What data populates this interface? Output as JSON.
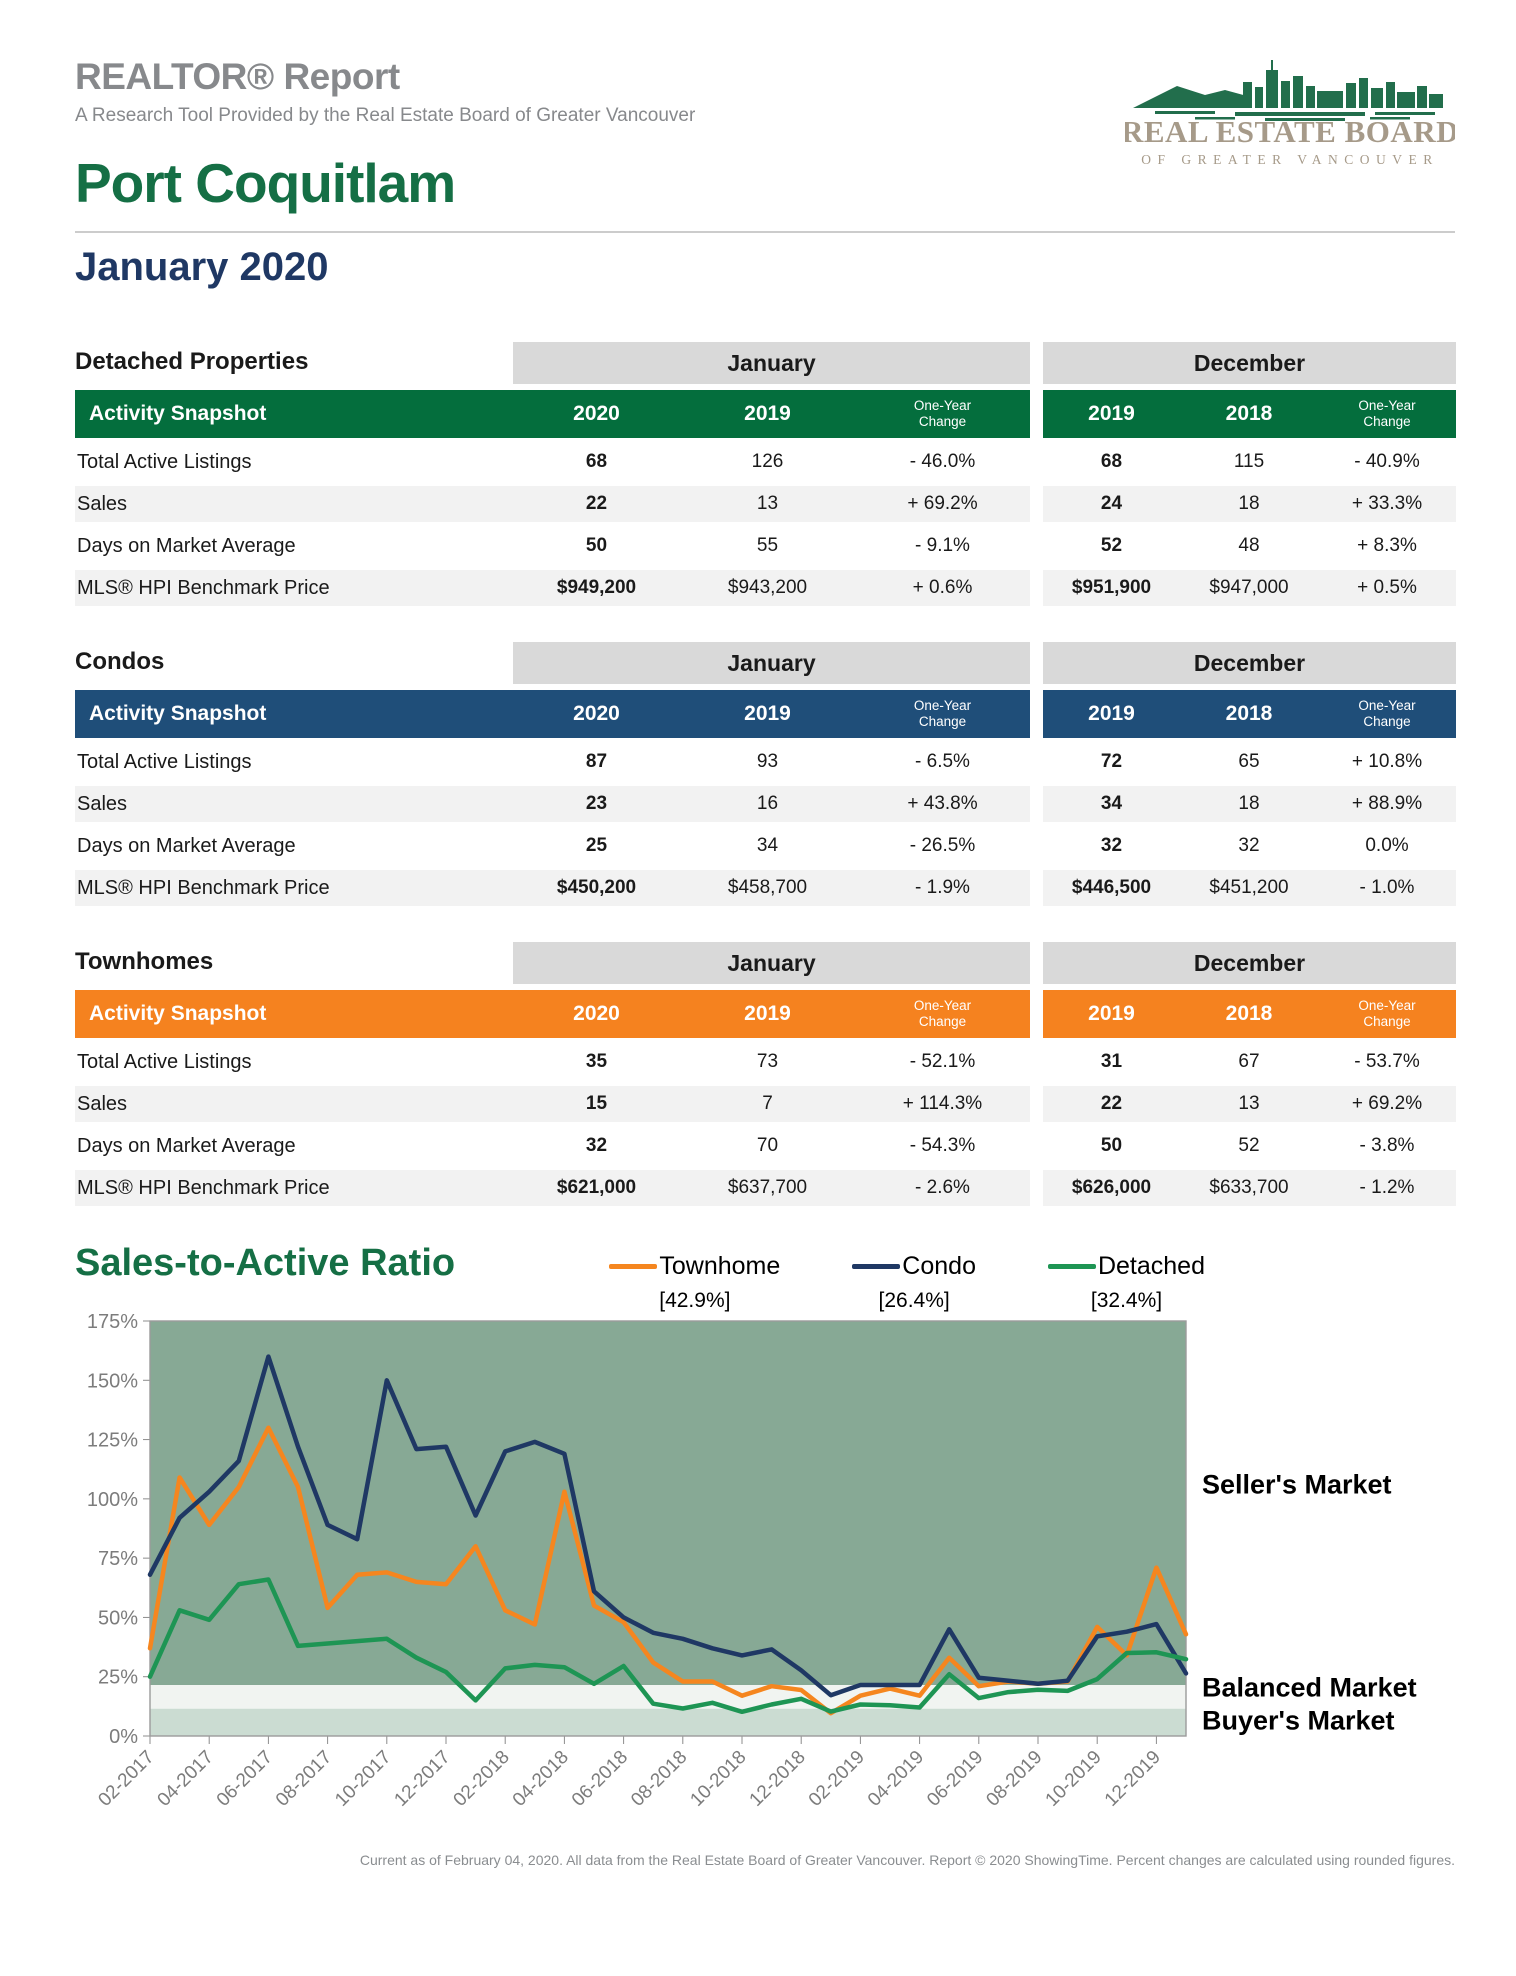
{
  "header": {
    "report_title": "REALTOR® Report",
    "report_subtitle": "A Research Tool Provided by the Real Estate Board of Greater Vancouver",
    "city": "Port Coquitlam",
    "month": "January 2020",
    "logo": {
      "org_line1": "REAL ESTATE BOARD",
      "org_line2": "OF GREATER VANCOUVER",
      "skyline_color": "#226e4c",
      "text_color": "#a69a89"
    }
  },
  "tables": [
    {
      "title": "Detached Properties",
      "accent": "#046e3d",
      "group1": "January",
      "group2": "December",
      "snapshot_label": "Activity Snapshot",
      "col_headers": [
        "2020",
        "2019",
        "One-Year\nChange",
        "2019",
        "2018",
        "One-Year\nChange"
      ],
      "rows": [
        {
          "label": "Total Active Listings",
          "values": [
            "68",
            "126",
            "- 46.0%",
            "68",
            "115",
            "- 40.9%"
          ]
        },
        {
          "label": "Sales",
          "values": [
            "22",
            "13",
            "+ 69.2%",
            "24",
            "18",
            "+ 33.3%"
          ]
        },
        {
          "label": "Days on Market Average",
          "values": [
            "50",
            "55",
            "- 9.1%",
            "52",
            "48",
            "+ 8.3%"
          ]
        },
        {
          "label": "MLS® HPI Benchmark Price",
          "values": [
            "$949,200",
            "$943,200",
            "+ 0.6%",
            "$951,900",
            "$947,000",
            "+ 0.5%"
          ]
        }
      ]
    },
    {
      "title": "Condos",
      "accent": "#1f4e79",
      "group1": "January",
      "group2": "December",
      "snapshot_label": "Activity Snapshot",
      "col_headers": [
        "2020",
        "2019",
        "One-Year\nChange",
        "2019",
        "2018",
        "One-Year\nChange"
      ],
      "rows": [
        {
          "label": "Total Active Listings",
          "values": [
            "87",
            "93",
            "- 6.5%",
            "72",
            "65",
            "+ 10.8%"
          ]
        },
        {
          "label": "Sales",
          "values": [
            "23",
            "16",
            "+ 43.8%",
            "34",
            "18",
            "+ 88.9%"
          ]
        },
        {
          "label": "Days on Market Average",
          "values": [
            "25",
            "34",
            "- 26.5%",
            "32",
            "32",
            "0.0%"
          ]
        },
        {
          "label": "MLS® HPI Benchmark Price",
          "values": [
            "$450,200",
            "$458,700",
            "- 1.9%",
            "$446,500",
            "$451,200",
            "- 1.0%"
          ]
        }
      ]
    },
    {
      "title": "Townhomes",
      "accent": "#f5821f",
      "group1": "January",
      "group2": "December",
      "snapshot_label": "Activity Snapshot",
      "col_headers": [
        "2020",
        "2019",
        "One-Year\nChange",
        "2019",
        "2018",
        "One-Year\nChange"
      ],
      "rows": [
        {
          "label": "Total Active Listings",
          "values": [
            "35",
            "73",
            "- 52.1%",
            "31",
            "67",
            "- 53.7%"
          ]
        },
        {
          "label": "Sales",
          "values": [
            "15",
            "7",
            "+ 114.3%",
            "22",
            "13",
            "+ 69.2%"
          ]
        },
        {
          "label": "Days on Market Average",
          "values": [
            "32",
            "70",
            "- 54.3%",
            "50",
            "52",
            "- 3.8%"
          ]
        },
        {
          "label": "MLS® HPI Benchmark Price",
          "values": [
            "$621,000",
            "$637,700",
            "- 2.6%",
            "$626,000",
            "$633,700",
            "- 1.2%"
          ]
        }
      ]
    }
  ],
  "chart_data": {
    "type": "line",
    "title": "Sales-to-Active Ratio",
    "ylabel": "",
    "xlabel": "",
    "ylim": [
      0,
      175
    ],
    "y_tick_step": 25,
    "y_tick_suffix": "%",
    "x_tick_every": 2,
    "grid": false,
    "legend_position": "top-right",
    "x": [
      "02-2017",
      "03-2017",
      "04-2017",
      "05-2017",
      "06-2017",
      "07-2017",
      "08-2017",
      "09-2017",
      "10-2017",
      "11-2017",
      "12-2017",
      "01-2018",
      "02-2018",
      "03-2018",
      "04-2018",
      "05-2018",
      "06-2018",
      "07-2018",
      "08-2018",
      "09-2018",
      "10-2018",
      "11-2018",
      "12-2018",
      "01-2019",
      "02-2019",
      "03-2019",
      "04-2019",
      "05-2019",
      "06-2019",
      "07-2019",
      "08-2019",
      "09-2019",
      "10-2019",
      "11-2019",
      "12-2019",
      "01-2020"
    ],
    "series": [
      {
        "name": "Townhome",
        "current_label": "[42.9%]",
        "color": "#f5861f",
        "values": [
          37,
          109,
          89,
          105,
          130,
          105,
          54,
          68,
          69,
          65,
          64,
          80,
          53,
          47,
          103,
          55,
          48,
          31,
          23,
          23,
          17,
          21,
          19.4,
          9.6,
          17,
          20,
          17,
          33,
          21,
          23,
          22,
          23,
          46,
          34,
          71,
          42.9
        ]
      },
      {
        "name": "Condo",
        "current_label": "[26.4%]",
        "color": "#1f3864",
        "values": [
          68,
          92,
          103,
          116,
          160,
          122,
          89,
          83,
          150,
          121,
          122,
          93,
          120,
          124,
          119,
          61,
          50,
          43.5,
          41,
          37,
          34,
          36.5,
          27.7,
          17.2,
          21.5,
          21.5,
          21.5,
          45,
          24.6,
          23.3,
          22,
          23.3,
          42,
          44,
          47.2,
          26.4
        ]
      },
      {
        "name": "Detached",
        "current_label": "[32.4%]",
        "color": "#1e9554",
        "values": [
          25,
          53,
          49,
          64,
          66,
          38,
          39,
          40,
          41,
          33,
          27,
          15,
          28.5,
          30,
          29,
          22,
          29.5,
          13.6,
          11.6,
          14,
          10.2,
          13.3,
          15.7,
          10.3,
          13.3,
          13,
          12,
          26,
          16,
          18.5,
          19.5,
          19,
          24,
          35,
          35.3,
          32.4
        ]
      }
    ],
    "zones": [
      {
        "label": "Seller's Market",
        "min": 21.5,
        "max": 175,
        "color": "#87a995",
        "label_at": 106
      },
      {
        "label": "Balanced Market",
        "min": 11.5,
        "max": 21.5,
        "color": "#f1f4f1",
        "label_at": 20.5
      },
      {
        "label": "Buyer's Market",
        "min": 0,
        "max": 11.5,
        "color": "#cbdcd2",
        "label_at": 6.5
      }
    ],
    "axis_color": "#7c7c7c"
  },
  "footer": "Current as of February 04, 2020. All data from the Real Estate Board of Greater Vancouver. Report © 2020 ShowingTime. Percent changes are calculated using rounded figures."
}
